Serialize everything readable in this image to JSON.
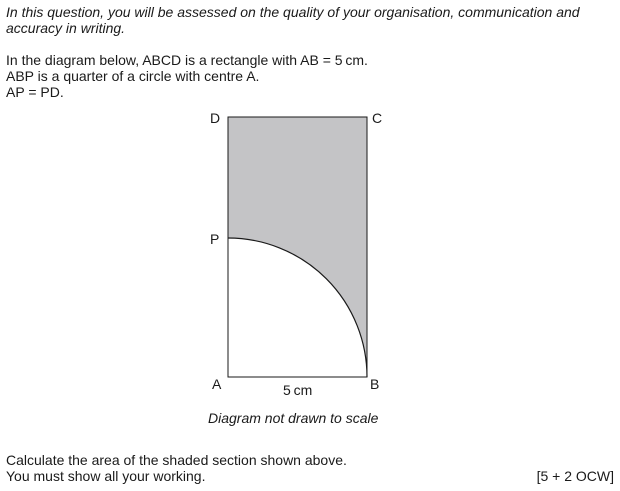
{
  "intro": {
    "line1": "In this question, you will be assessed on the quality of your organisation, communication and",
    "line2": "accuracy in writing."
  },
  "question": {
    "line1": "In the diagram below, ABCD is a rectangle with AB = 5 cm.",
    "line2": "ABP is a quarter of a circle with centre A.",
    "line3": "AP = PD."
  },
  "diagram": {
    "labels": {
      "A": "A",
      "B": "B",
      "C": "C",
      "D": "D",
      "P": "P"
    },
    "dimension": "5 cm",
    "caption": "Diagram not drawn to scale",
    "colors": {
      "shade": "#c4c4c6",
      "stroke": "#1a1a1a"
    }
  },
  "task": {
    "line1": "Calculate the area of the shaded section shown above.",
    "line2": "You must show all your working.",
    "marks": "[5 + 2 OCW]"
  }
}
